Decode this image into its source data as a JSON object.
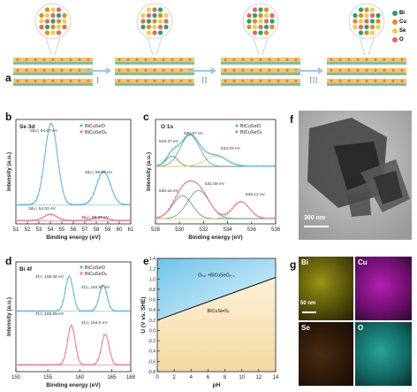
{
  "panels": {
    "a": {
      "letter": "a",
      "stages": [
        "I",
        "II",
        "III"
      ],
      "legend": [
        {
          "label": "Bi",
          "color": "#2f9e6a"
        },
        {
          "label": "Cu",
          "color": "#e08a2c"
        },
        {
          "label": "Se",
          "color": "#e8d24a"
        },
        {
          "label": "O",
          "color": "#d96b6b"
        }
      ]
    },
    "b": {
      "letter": "b",
      "title": "Se 3d",
      "legend": [
        "BiCuSeO",
        "BiCuSeOₓ"
      ],
      "peak_labels_top": [
        "3d₅/₂ 54.07 eV",
        "3d₃/₂ 58.64 eV"
      ],
      "peak_labels_bottom": [
        "3d₅/₂ 54.02 eV",
        "3d₃/₂ 58.37 eV"
      ]
    },
    "c": {
      "letter": "c",
      "title": "O 1s",
      "legend": [
        "BiCuSeO",
        "BiCuSeOₓ"
      ],
      "peak_labels_top": [
        "529.37 eV",
        "530.87 eV",
        "533.03 eV"
      ],
      "peak_labels_bottom": [
        "530.24 eV",
        "531.58 eV",
        "535.12 eV"
      ]
    },
    "d": {
      "letter": "d",
      "title": "Bi 4f",
      "legend": [
        "BiCuSeO",
        "BiCuSeOₓ"
      ],
      "peak_labels_top": [
        "4f₇/₂ 158.36 eV",
        "4f₅/₂ 163.67 eV"
      ],
      "peak_labels_bottom": [
        "4f₇/₂ 158.69 eV",
        "4f₅/₂ 164.0 eV"
      ]
    },
    "e": {
      "letter": "e",
      "upper_region_label": "Oₛᵤᵣ +BiCuSeOₓ₋₁",
      "lower_region_label": "BiCuSeOₓ"
    },
    "f": {
      "letter": "f",
      "scalebar": "300 nm"
    },
    "g": {
      "letter": "g",
      "maps": [
        "Bi",
        "Cu",
        "Se",
        "O"
      ],
      "scalebar": "50 nm"
    }
  },
  "chart_data": [
    {
      "panel": "b",
      "type": "line",
      "xlabel": "Binding energy (eV)",
      "ylabel": "Intensity (a.u.)",
      "xlim": [
        51,
        61
      ],
      "x_ticks": [
        51,
        52,
        53,
        54,
        55,
        56,
        57,
        58,
        59,
        60,
        61
      ],
      "series": [
        {
          "name": "BiCuSeO",
          "color": "#5fb4d9",
          "peaks": [
            {
              "center": 54.07,
              "height": 0.78,
              "width": 0.55
            },
            {
              "center": 58.64,
              "height": 0.32,
              "width": 0.6
            }
          ],
          "offset": 0.18
        },
        {
          "name": "BiCuSeOₓ",
          "color": "#e87d86",
          "peaks": [
            {
              "center": 54.02,
              "height": 0.06,
              "width": 0.55
            },
            {
              "center": 58.37,
              "height": 0.03,
              "width": 0.6
            }
          ],
          "offset": 0.03
        }
      ]
    },
    {
      "panel": "c",
      "type": "line",
      "xlabel": "Binding energy (eV)",
      "ylabel": "Intensity (a.u.)",
      "xlim": [
        528,
        538
      ],
      "x_ticks": [
        528,
        530,
        532,
        534,
        536,
        538
      ],
      "series": [
        {
          "name": "BiCuSeO",
          "color": "#5fb4d9",
          "peaks": [
            {
              "center": 529.37,
              "height": 0.1,
              "width": 0.5
            },
            {
              "center": 530.87,
              "height": 0.3,
              "width": 0.8
            },
            {
              "center": 533.03,
              "height": 0.1,
              "width": 0.9
            }
          ],
          "offset": 0.55
        },
        {
          "name": "BiCuSeOₓ",
          "color": "#e87d86",
          "peaks": [
            {
              "center": 530.24,
              "height": 0.22,
              "width": 0.8
            },
            {
              "center": 531.58,
              "height": 0.27,
              "width": 0.9
            },
            {
              "center": 535.12,
              "height": 0.16,
              "width": 0.7
            }
          ],
          "offset": 0.05
        }
      ]
    },
    {
      "panel": "d",
      "type": "line",
      "xlabel": "Binding energy (eV)",
      "ylabel": "Intensity (a.u.)",
      "xlim": [
        150,
        168
      ],
      "x_ticks": [
        150,
        155,
        160,
        165,
        168
      ],
      "x_tick_labels": [
        "150",
        "155",
        "160",
        "165",
        "168"
      ],
      "series": [
        {
          "name": "BiCuSeO",
          "color": "#5fb4d9",
          "peaks": [
            {
              "center": 158.36,
              "height": 0.32,
              "width": 0.6
            },
            {
              "center": 163.67,
              "height": 0.24,
              "width": 0.6
            }
          ],
          "offset": 0.55
        },
        {
          "name": "BiCuSeOₓ",
          "color": "#e87d86",
          "peaks": [
            {
              "center": 158.69,
              "height": 0.36,
              "width": 0.6
            },
            {
              "center": 164.0,
              "height": 0.28,
              "width": 0.6
            }
          ],
          "offset": 0.06
        }
      ]
    },
    {
      "panel": "e",
      "type": "area",
      "xlabel": "pH",
      "ylabel": "U (V vs. SHE)",
      "xlim": [
        0,
        14
      ],
      "ylim": [
        -0.8,
        1.4
      ],
      "x_ticks": [
        0,
        2,
        4,
        6,
        8,
        10,
        12,
        14
      ],
      "y_ticks": [
        -0.8,
        -0.6,
        -0.4,
        -0.2,
        0.0,
        0.2,
        0.4,
        0.6,
        0.8,
        1.0,
        1.2,
        1.4
      ],
      "boundary": {
        "x": [
          0,
          14
        ],
        "y": [
          0.2,
          1.03
        ]
      },
      "colors": {
        "upper": "#6fc3ea",
        "lower": "#f3d9a2"
      }
    }
  ]
}
